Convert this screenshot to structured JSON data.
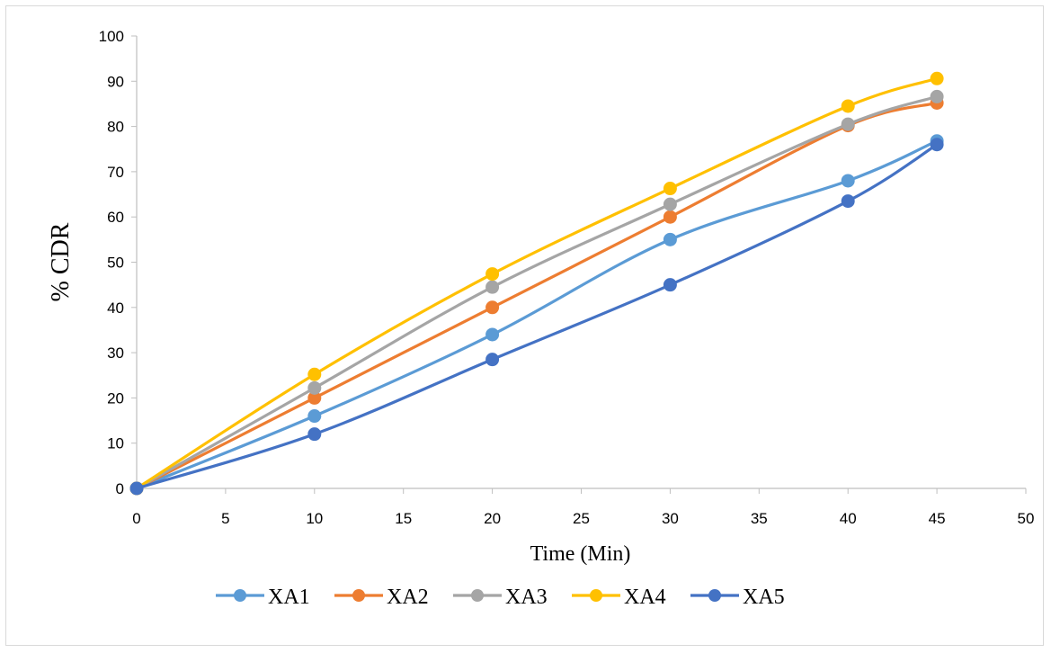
{
  "chart_data": {
    "type": "line",
    "title": "",
    "xlabel": "Time (Min)",
    "ylabel": "% CDR",
    "xlim": [
      0,
      50
    ],
    "ylim": [
      0,
      100
    ],
    "x_ticks": [
      0,
      5,
      10,
      15,
      20,
      25,
      30,
      35,
      40,
      45,
      50
    ],
    "y_ticks": [
      0,
      10,
      20,
      30,
      40,
      50,
      60,
      70,
      80,
      90,
      100
    ],
    "grid": false,
    "smooth": true,
    "markers": "circle",
    "legend_position": "bottom",
    "x": [
      0,
      10,
      20,
      30,
      40,
      45
    ],
    "series": [
      {
        "name": "XA1",
        "color": "#5B9BD5",
        "values": [
          0,
          16,
          34,
          55,
          68,
          76.8
        ]
      },
      {
        "name": "XA2",
        "color": "#ED7D31",
        "values": [
          0,
          20,
          40,
          60,
          80.2,
          85.2
        ]
      },
      {
        "name": "XA3",
        "color": "#A5A5A5",
        "values": [
          0,
          22.2,
          44.5,
          62.8,
          80.5,
          86.6
        ]
      },
      {
        "name": "XA4",
        "color": "#FFC000",
        "values": [
          0,
          25.2,
          47.4,
          66.3,
          84.5,
          90.6
        ]
      },
      {
        "name": "XA5",
        "color": "#4472C4",
        "values": [
          0,
          12,
          28.5,
          45,
          63.5,
          76
        ]
      }
    ]
  }
}
